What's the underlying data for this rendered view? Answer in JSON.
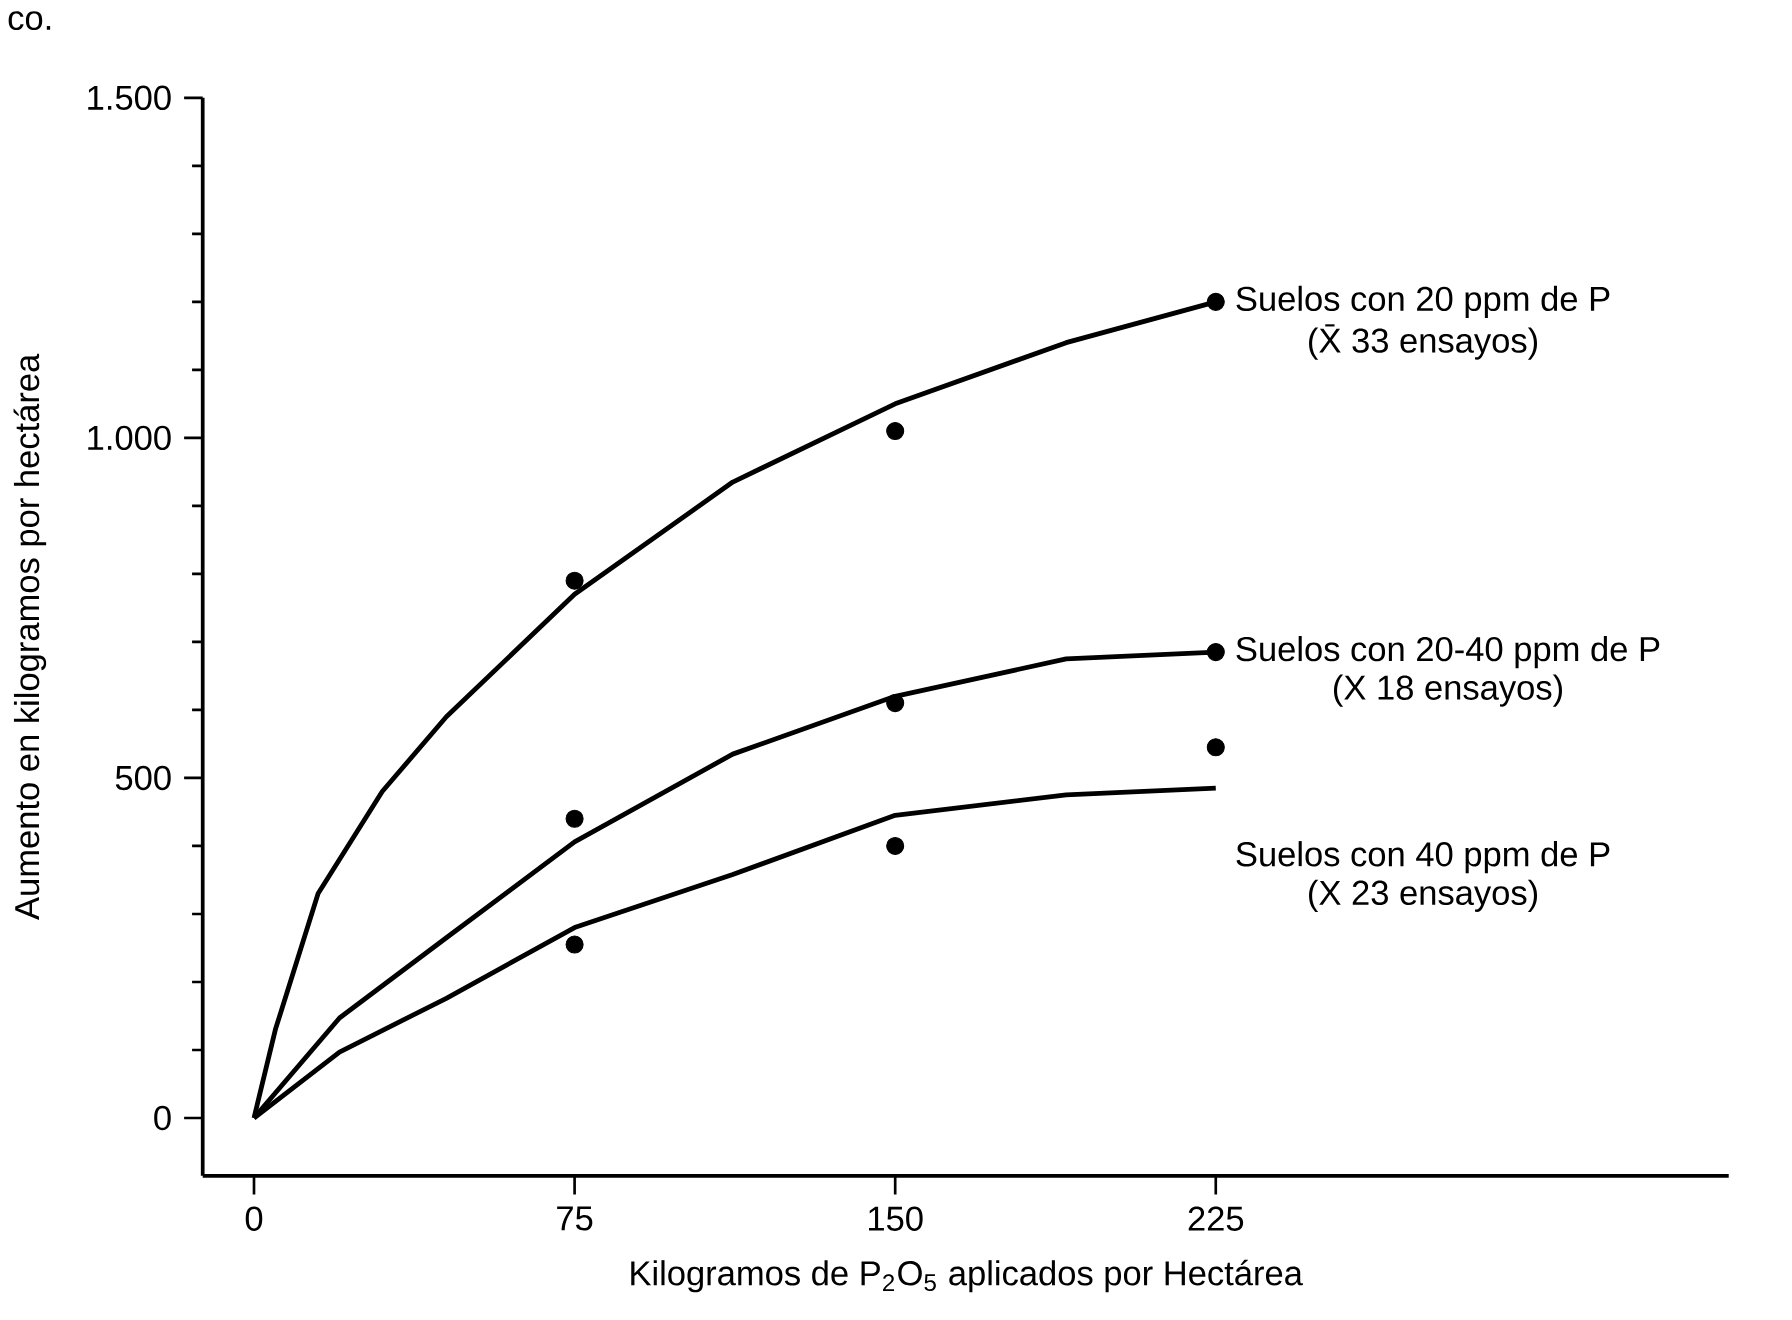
{
  "chart_data": {
    "type": "line",
    "xlabel": "Kilogramos de P$_{2}$O$_{5}$ aplicados por Hectárea",
    "ylabel": "Aumento en kilogramos por hectárea",
    "xlim": [
      -12,
      345
    ],
    "ylim": [
      -85,
      1500
    ],
    "xticks": [
      0,
      75,
      150,
      225
    ],
    "yticks": [
      0,
      500,
      {
        "value": 1000,
        "label": "1.000"
      },
      {
        "value": 1500,
        "label": "1.500"
      }
    ],
    "grid": false,
    "annotations": [
      "co.",
      "(X̄ 33 ensayos)",
      "(X 18 ensayos)",
      "(X 23 ensayos)"
    ],
    "series": [
      {
        "name": "Suelos con  20 ppm de P",
        "type": "line",
        "marker": "none",
        "color": "#000000",
        "x": [
          0,
          5,
          15,
          30,
          45,
          75,
          112,
          150,
          190,
          225
        ],
        "values": [
          0,
          130,
          330,
          480,
          590,
          770,
          935,
          1050,
          1140,
          1200
        ]
      },
      {
        "name": "Suelos con 20-40 ppm de P",
        "type": "line",
        "marker": "none",
        "color": "#000000",
        "x": [
          0,
          20,
          45,
          75,
          112,
          150,
          190,
          225
        ],
        "values": [
          0,
          147,
          265,
          406,
          535,
          620,
          675,
          685
        ]
      },
      {
        "name": "Suelos con 40 ppm de P",
        "type": "line",
        "marker": "none",
        "color": "#000000",
        "x": [
          0,
          20,
          45,
          75,
          112,
          150,
          190,
          225
        ],
        "values": [
          0,
          97,
          176,
          280,
          358,
          445,
          475,
          485
        ]
      },
      {
        "type": "scatter",
        "marker": "circle",
        "color": "#000000",
        "x": [
          75,
          150,
          225
        ],
        "values": [
          790,
          1010,
          1200
        ]
      },
      {
        "type": "scatter",
        "marker": "circle",
        "color": "#000000",
        "x": [
          75,
          150,
          225
        ],
        "values": [
          440,
          610,
          685
        ]
      },
      {
        "type": "scatter",
        "marker": "circle",
        "color": "#000000",
        "x": [
          75,
          150,
          225
        ],
        "values": [
          255,
          400,
          545
        ]
      }
    ]
  }
}
